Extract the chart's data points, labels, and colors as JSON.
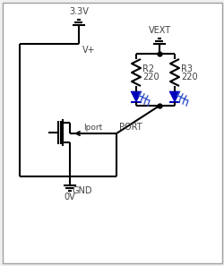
{
  "bg_color": "#f0f0f0",
  "border_color": "#a0a0a0",
  "line_color": "#000000",
  "blue_color": "#0000bb",
  "text_color": "#404040",
  "v33_label": "3.3V",
  "vplus_label": "V+",
  "vext_label": "VEXT",
  "r2_label": "R2",
  "r2_val": "220",
  "r3_label": "R3",
  "r3_val": "220",
  "port_label": "PORT",
  "iport_label": "Iport",
  "gnd_label": "GND",
  "ov_label": "0V"
}
